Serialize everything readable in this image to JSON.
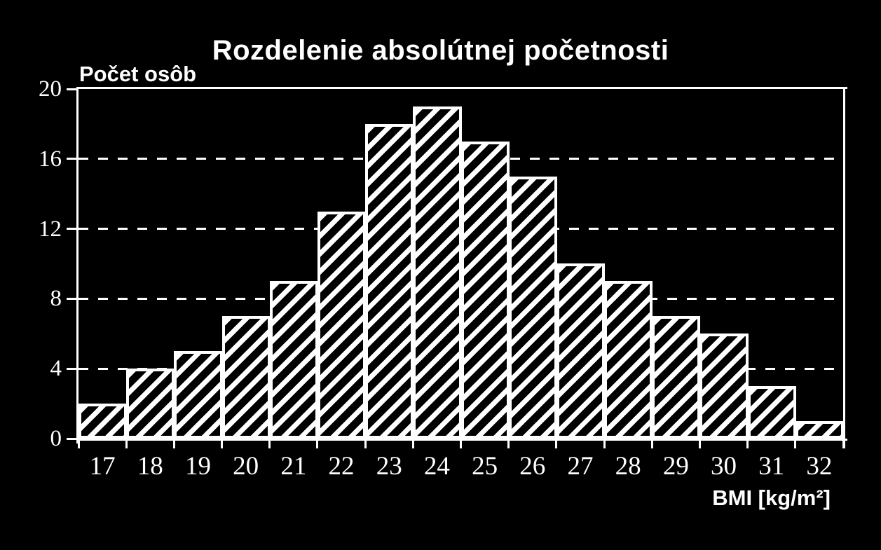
{
  "window": {
    "background_color": "#000000",
    "foreground_color": "#ffffff"
  },
  "chart_data": {
    "type": "bar",
    "variant": "histogram",
    "title": "Rozdelenie absolútnej početnosti",
    "ylabel": "Počet osôb",
    "xlabel": "BMI [kg/m²]",
    "categories": [
      "17",
      "18",
      "19",
      "20",
      "21",
      "22",
      "23",
      "24",
      "25",
      "26",
      "27",
      "28",
      "29",
      "30",
      "31",
      "32"
    ],
    "values": [
      2,
      4,
      5,
      7,
      9,
      13,
      18,
      19,
      17,
      15,
      10,
      9,
      7,
      6,
      3,
      1
    ],
    "ylim": [
      0,
      20
    ],
    "yticks": [
      0,
      4,
      8,
      12,
      16,
      20
    ],
    "gridline_values": [
      4,
      8,
      12,
      16
    ],
    "grid_style": "dashed",
    "legend": "none",
    "bar_fill": "diagonal-hatch-white-on-black",
    "colors": {
      "background": "#000000",
      "bars": "#ffffff",
      "grid": "#ffffff",
      "text": "#ffffff"
    }
  }
}
